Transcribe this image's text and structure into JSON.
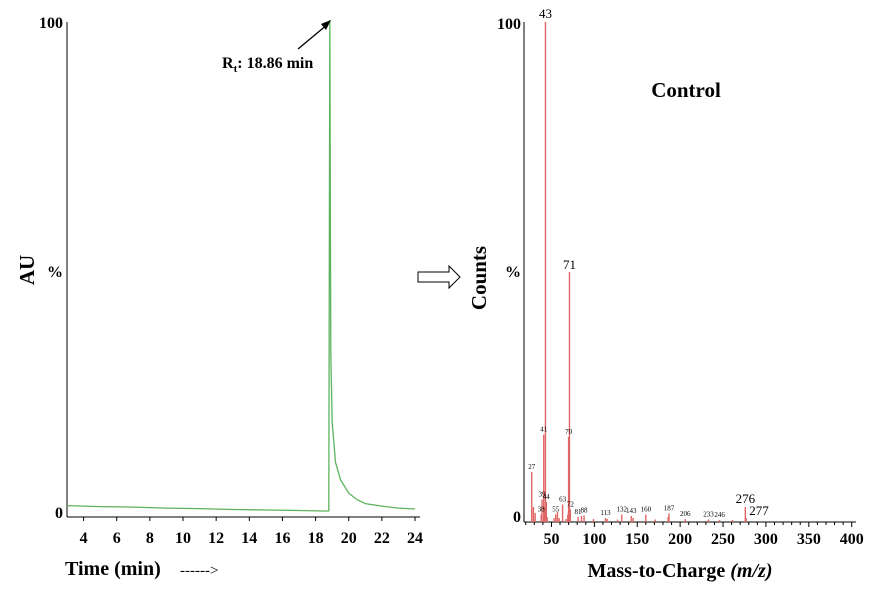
{
  "chart_data": [
    {
      "type": "line",
      "ylabel": "AU",
      "y_axis_labels": {
        "top": "100",
        "mid": "%",
        "bottom": "0"
      },
      "xlabel": "Time (min)",
      "xlabel_arrow": "------>",
      "x_ticks": [
        4,
        6,
        8,
        10,
        12,
        14,
        16,
        18,
        20,
        22,
        24
      ],
      "xlim": [
        3,
        24.3
      ],
      "ylim": [
        0,
        100
      ],
      "line_color": "#5db35d",
      "annotation": {
        "symbol": "R",
        "subscript": "t",
        "text": ": 18.86 min",
        "x": 18.86,
        "y": 100
      },
      "series": [
        {
          "x": [
            3.0,
            5.0,
            7.0,
            9.0,
            11.0,
            13.0,
            15.0,
            17.0,
            18.5,
            18.8,
            18.86,
            18.92,
            19.0,
            19.2,
            19.5,
            20.0,
            20.5,
            21.0,
            22.0,
            23.0,
            24.0
          ],
          "values": [
            2.3,
            2.1,
            2.0,
            1.8,
            1.7,
            1.5,
            1.4,
            1.3,
            1.2,
            1.2,
            100,
            33,
            19,
            11,
            7.5,
            4.8,
            3.5,
            2.7,
            2.2,
            1.8,
            1.6
          ]
        }
      ]
    },
    {
      "type": "bar",
      "title": "Control",
      "ylabel": "Counts",
      "y_axis_labels": {
        "top": "100",
        "mid": "%",
        "bottom": "0"
      },
      "xlabel": "Mass-to-Charge",
      "xlabel_italic": "(m/z)",
      "x_ticks": [
        50,
        100,
        150,
        200,
        250,
        300,
        350,
        400
      ],
      "xlim": [
        18,
        405
      ],
      "ylim": [
        0,
        100
      ],
      "bar_color": "#e06666",
      "peaks": [
        {
          "mz": 27,
          "value": 10,
          "label": "27"
        },
        {
          "mz": 38,
          "value": 1.5,
          "label": "38"
        },
        {
          "mz": 39,
          "value": 4.5,
          "label": "39"
        },
        {
          "mz": 41,
          "value": 17.5,
          "label": "41"
        },
        {
          "mz": 43,
          "value": 100,
          "label": "43"
        },
        {
          "mz": 44,
          "value": 4,
          "label": "44"
        },
        {
          "mz": 55,
          "value": 1.5,
          "label": "55"
        },
        {
          "mz": 63,
          "value": 3.5,
          "label": "63"
        },
        {
          "mz": 70,
          "value": 17,
          "label": "70"
        },
        {
          "mz": 71,
          "value": 50,
          "label": "71"
        },
        {
          "mz": 72,
          "value": 2.5,
          "label": "72"
        },
        {
          "mz": 81,
          "value": 1,
          "label": "81"
        },
        {
          "mz": 88,
          "value": 1.3,
          "label": "88"
        },
        {
          "mz": 113,
          "value": 0.8,
          "label": "113"
        },
        {
          "mz": 132,
          "value": 1.5,
          "label": "132"
        },
        {
          "mz": 143,
          "value": 1.2,
          "label": "143"
        },
        {
          "mz": 160,
          "value": 1.5,
          "label": "160"
        },
        {
          "mz": 187,
          "value": 1.7,
          "label": "187"
        },
        {
          "mz": 206,
          "value": 0.6,
          "label": "206"
        },
        {
          "mz": 233,
          "value": 0.5,
          "label": "233"
        },
        {
          "mz": 246,
          "value": 0.4,
          "label": "246"
        },
        {
          "mz": 276,
          "value": 3,
          "label": "276"
        },
        {
          "mz": 277,
          "value": 0.8,
          "label": "277"
        }
      ],
      "minor_peaks": [
        {
          "mz": 29,
          "value": 3
        },
        {
          "mz": 31,
          "value": 1.8
        },
        {
          "mz": 42,
          "value": 3
        },
        {
          "mz": 45,
          "value": 1
        },
        {
          "mz": 53,
          "value": 0.8
        },
        {
          "mz": 57,
          "value": 2
        },
        {
          "mz": 59,
          "value": 0.8
        },
        {
          "mz": 67,
          "value": 0.6
        },
        {
          "mz": 69,
          "value": 1.5
        },
        {
          "mz": 85,
          "value": 1.2
        },
        {
          "mz": 99,
          "value": 0.6
        },
        {
          "mz": 115,
          "value": 0.6
        },
        {
          "mz": 127,
          "value": 0.5
        },
        {
          "mz": 145,
          "value": 0.8
        },
        {
          "mz": 171,
          "value": 0.5
        },
        {
          "mz": 186,
          "value": 1
        },
        {
          "mz": 261,
          "value": 0.4
        }
      ]
    }
  ]
}
